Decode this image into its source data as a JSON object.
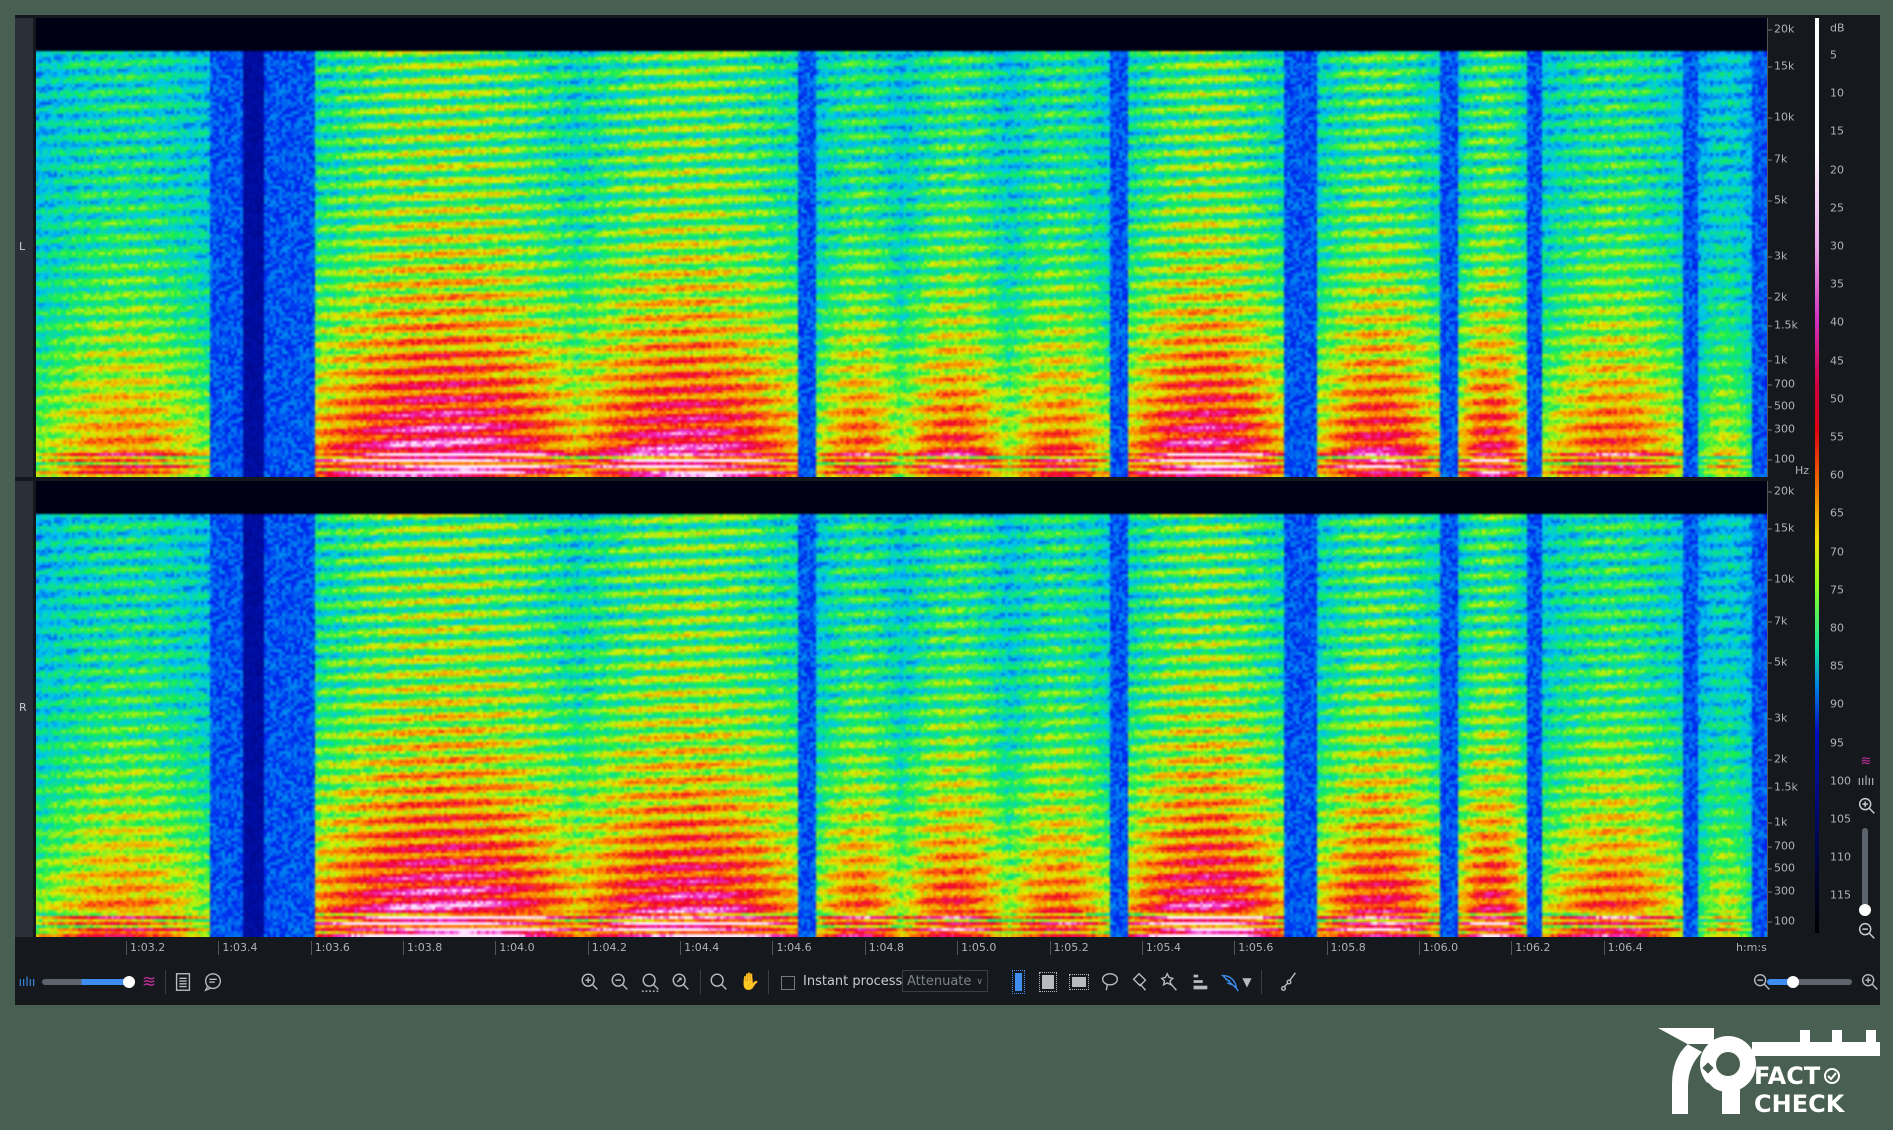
{
  "channels": [
    {
      "label": "L"
    },
    {
      "label": "R"
    }
  ],
  "frequency_axis": {
    "unit": "Hz",
    "labels": [
      "20k",
      "15k",
      "10k",
      "7k",
      "5k",
      "3k",
      "2k",
      "1.5k",
      "1k",
      "700",
      "500",
      "300",
      "100"
    ]
  },
  "db_scale": {
    "unit": "dB",
    "labels": [
      "5",
      "10",
      "15",
      "20",
      "25",
      "30",
      "35",
      "40",
      "45",
      "50",
      "55",
      "60",
      "65",
      "70",
      "75",
      "80",
      "85",
      "90",
      "95",
      "100",
      "105",
      "110",
      "115"
    ]
  },
  "time_axis": {
    "unit": "h:m:s",
    "labels": [
      "1:03.2",
      "1:03.4",
      "1:03.6",
      "1:03.8",
      "1:04.0",
      "1:04.2",
      "1:04.4",
      "1:04.6",
      "1:04.8",
      "1:05.0",
      "1:05.2",
      "1:05.4",
      "1:05.6",
      "1:05.8",
      "1:06.0",
      "1:06.2",
      "1:06.4"
    ]
  },
  "toolbar": {
    "instant_process_label": "Instant process",
    "instant_process_checked": false,
    "mode_select_value": "Attenuate",
    "opacity_slider_value": 0.9,
    "zoom_slider_value": 0.3,
    "icons": [
      "waveform-icon",
      "spectrogram-icon",
      "list-icon",
      "comment-icon",
      "zoom-in-icon",
      "zoom-out-icon",
      "zoom-selection-icon",
      "zoom-fit-icon",
      "magnify-icon",
      "hand-icon",
      "time-selection-icon",
      "time-frequency-selection-icon",
      "frequency-selection-icon",
      "lasso-icon",
      "brush-icon",
      "magic-wand-icon",
      "harmonic-selection-icon",
      "feather-icon",
      "dropdown-triangle-icon",
      "curve-icon"
    ]
  },
  "vertical_zoom_slider_value": 0.05,
  "colors": {
    "background": "#485f51",
    "panel": "#15181d",
    "accent": "#3d8ef0",
    "spectrogram_pink": "#c0309a"
  },
  "logo": {
    "text_line1": "FACT",
    "text_line2": "CHECK"
  }
}
